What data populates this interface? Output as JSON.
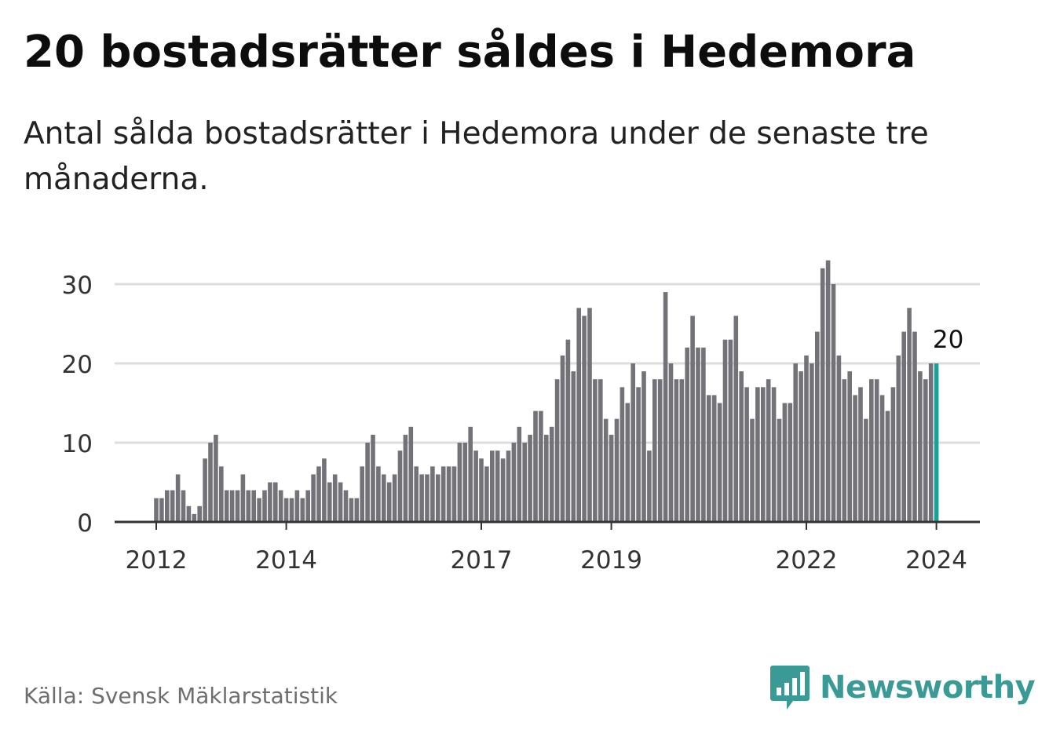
{
  "title": "20 bostadsrätter såldes i Hedemora",
  "subtitle": "Antal sålda bostadsrätter i Hedemora under de senaste tre månaderna.",
  "source": "Källa: Svensk Mäklarstatistik",
  "brand": {
    "name": "Newsworthy",
    "icon": "newsworthy-logo-icon"
  },
  "colors": {
    "bar": "#737278",
    "highlight": "#1f9e96",
    "grid": "#dddddd",
    "axis": "#333333",
    "brand": "#3a9a96"
  },
  "chart_data": {
    "type": "bar",
    "title": "20 bostadsrätter såldes i Hedemora",
    "xlabel": "",
    "ylabel": "",
    "ylim": [
      0,
      30
    ],
    "yticks": [
      0,
      10,
      20,
      30
    ],
    "grid": true,
    "x_start": "2012-01",
    "x_tick_labels": [
      {
        "label": "2012",
        "index": 0
      },
      {
        "label": "2014",
        "index": 24
      },
      {
        "label": "2017",
        "index": 60
      },
      {
        "label": "2019",
        "index": 84
      },
      {
        "label": "2022",
        "index": 120
      },
      {
        "label": "2024",
        "index": 144
      }
    ],
    "values": [
      3,
      3,
      4,
      4,
      6,
      4,
      2,
      1,
      2,
      8,
      10,
      11,
      7,
      4,
      4,
      4,
      6,
      4,
      4,
      3,
      4,
      5,
      5,
      4,
      3,
      3,
      4,
      3,
      4,
      6,
      7,
      8,
      5,
      6,
      5,
      4,
      3,
      3,
      7,
      10,
      11,
      7,
      6,
      5,
      6,
      9,
      11,
      12,
      7,
      6,
      6,
      7,
      6,
      7,
      7,
      7,
      10,
      10,
      12,
      9,
      8,
      7,
      9,
      9,
      8,
      9,
      10,
      12,
      10,
      11,
      14,
      14,
      11,
      12,
      18,
      21,
      23,
      19,
      27,
      26,
      27,
      18,
      18,
      13,
      11,
      13,
      17,
      15,
      20,
      17,
      19,
      9,
      18,
      18,
      29,
      20,
      18,
      18,
      22,
      26,
      22,
      22,
      16,
      16,
      15,
      23,
      23,
      26,
      19,
      17,
      13,
      17,
      17,
      18,
      17,
      13,
      15,
      15,
      20,
      19,
      21,
      20,
      24,
      32,
      33,
      30,
      21,
      18,
      19,
      16,
      17,
      13,
      18,
      18,
      16,
      14,
      17,
      21,
      24,
      27,
      24,
      19,
      18,
      20,
      20
    ],
    "highlight_index": 144,
    "highlight_label": "20"
  }
}
